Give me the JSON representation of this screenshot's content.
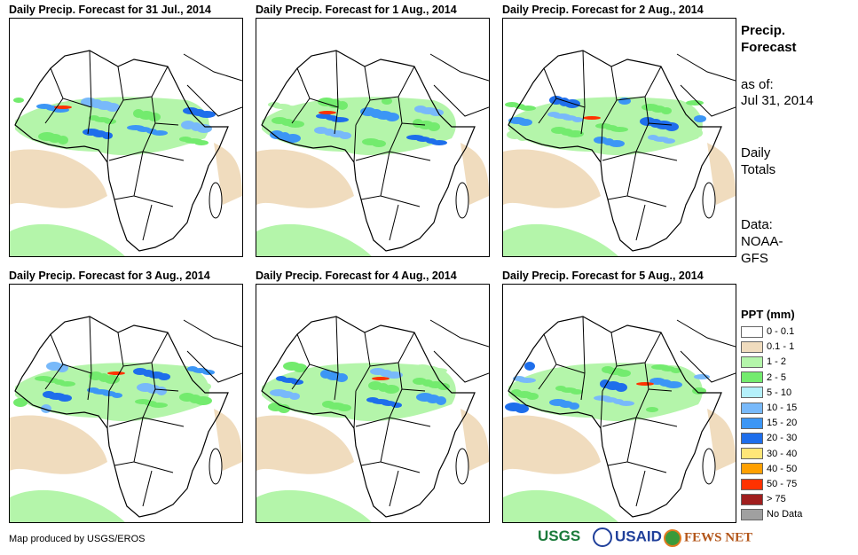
{
  "panels": [
    {
      "title": "Daily Precip. Forecast for 31 Jul., 2014"
    },
    {
      "title": "Daily Precip. Forecast for 1 Aug., 2014"
    },
    {
      "title": "Daily Precip. Forecast for 2 Aug., 2014"
    },
    {
      "title": "Daily Precip. Forecast for 3 Aug., 2014"
    },
    {
      "title": "Daily Precip. Forecast for 4 Aug., 2014"
    },
    {
      "title": "Daily Precip. Forecast for 5 Aug., 2014"
    }
  ],
  "side": {
    "title1": "Precip.",
    "title2": "Forecast",
    "asof1": "as of:",
    "asof2": "Jul 31, 2014",
    "daily1": "Daily",
    "daily2": "Totals",
    "data1": "Data:",
    "data2": "NOAA-",
    "data3": "GFS"
  },
  "legend": {
    "title": "PPT (mm)",
    "items": [
      {
        "label": "0 - 0.1",
        "color": "#ffffff"
      },
      {
        "label": "0.1 - 1",
        "color": "#f0dcbe"
      },
      {
        "label": "1 - 2",
        "color": "#b4f5aa"
      },
      {
        "label": "2 - 5",
        "color": "#73eb6e"
      },
      {
        "label": "5 - 10",
        "color": "#b4f0fa"
      },
      {
        "label": "10 - 15",
        "color": "#78b9fa"
      },
      {
        "label": "15 - 20",
        "color": "#3c96f5"
      },
      {
        "label": "20 - 30",
        "color": "#1e6eeb"
      },
      {
        "label": "30 - 40",
        "color": "#ffe678"
      },
      {
        "label": "40 - 50",
        "color": "#ffa000"
      },
      {
        "label": "50 - 75",
        "color": "#ff3200"
      },
      {
        "label": "> 75",
        "color": "#a01e1e"
      },
      {
        "label": "No Data",
        "color": "#a0a0a0"
      }
    ]
  },
  "credit": "Map produced by USGS/EROS",
  "logos": {
    "usgs": "USGS",
    "usaid": "USAID",
    "fews": "FEWS NET"
  }
}
